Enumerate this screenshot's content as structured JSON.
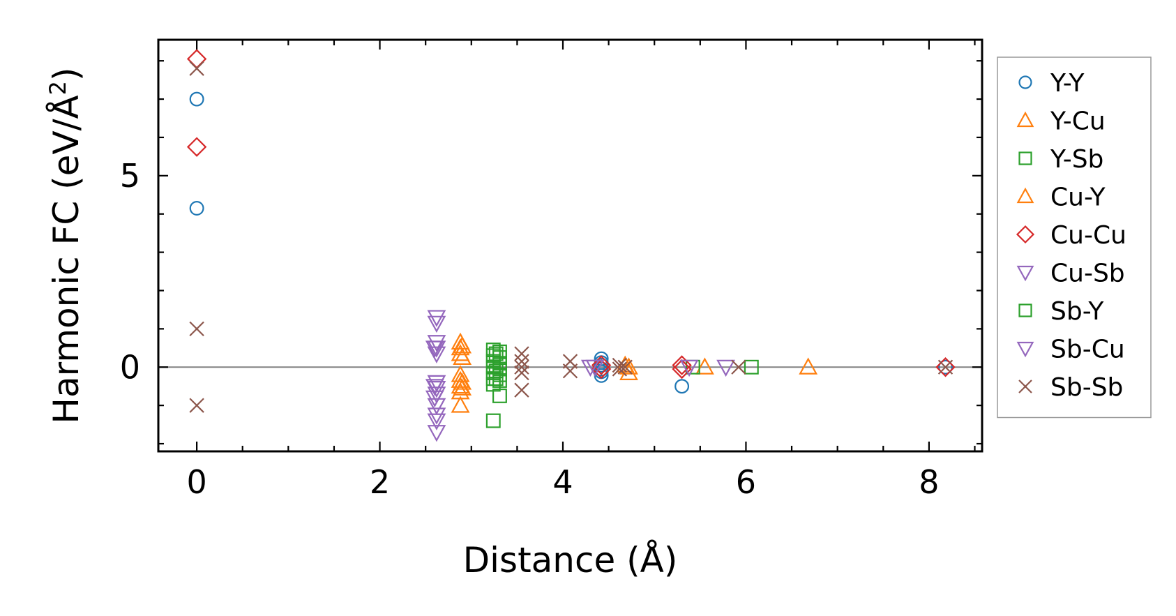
{
  "chart_data": {
    "type": "scatter",
    "title": "",
    "xlabel": "Distance (Å)",
    "ylabel": "Harmonic FC (eV/Å²)",
    "ylabel_parts": {
      "main": "Harmonic FC (eV/Å",
      "sup": "2",
      "close": ")"
    },
    "xlim": [
      -0.42,
      8.58
    ],
    "ylim": [
      -2.2,
      8.55
    ],
    "xticks": [
      0,
      2,
      4,
      6,
      8
    ],
    "xtick_labels": [
      "0",
      "2",
      "4",
      "6",
      "8"
    ],
    "yticks": [
      0,
      5
    ],
    "ytick_labels": [
      "0",
      "5"
    ],
    "reference_line_y": 0,
    "legend_position": "outside-right",
    "series": [
      {
        "name": "Y-Y",
        "marker": "circle",
        "color": "#1f77b4",
        "points": [
          [
            0,
            7.0
          ],
          [
            0,
            4.15
          ],
          [
            4.42,
            0.22
          ],
          [
            4.42,
            0.12
          ],
          [
            4.42,
            0.05
          ],
          [
            4.42,
            -0.05
          ],
          [
            4.42,
            -0.12
          ],
          [
            4.42,
            -0.22
          ],
          [
            5.3,
            -0.5
          ],
          [
            8.18,
            0.0
          ]
        ]
      },
      {
        "name": "Y-Cu",
        "marker": "triangle-up",
        "color": "#ff7f0e",
        "points": [
          [
            2.88,
            0.65
          ],
          [
            2.88,
            0.5
          ],
          [
            2.88,
            0.35
          ],
          [
            2.88,
            -0.2
          ],
          [
            2.88,
            -0.35
          ],
          [
            2.88,
            -0.5
          ],
          [
            2.88,
            -0.65
          ],
          [
            2.88,
            -1.0
          ],
          [
            4.72,
            0.0
          ],
          [
            4.72,
            -0.15
          ],
          [
            5.55,
            0.0
          ],
          [
            6.68,
            0.0
          ]
        ]
      },
      {
        "name": "Y-Sb",
        "marker": "square",
        "color": "#2ca02c",
        "points": [
          [
            3.24,
            0.45
          ],
          [
            3.24,
            0.3
          ],
          [
            3.24,
            0.15
          ],
          [
            3.24,
            0.0
          ],
          [
            3.24,
            -0.15
          ],
          [
            3.24,
            -0.3
          ],
          [
            3.24,
            -0.45
          ],
          [
            3.24,
            -1.4
          ],
          [
            3.31,
            0.4
          ],
          [
            3.31,
            0.25
          ],
          [
            3.31,
            0.1
          ],
          [
            3.31,
            -0.05
          ],
          [
            3.31,
            -0.2
          ],
          [
            3.31,
            -0.35
          ],
          [
            3.31,
            -0.75
          ],
          [
            5.42,
            0.0
          ],
          [
            6.06,
            0.0
          ]
        ]
      },
      {
        "name": "Cu-Y",
        "marker": "triangle-up",
        "color": "#ff7f0e",
        "points": [
          [
            2.9,
            0.55
          ],
          [
            2.9,
            0.25
          ],
          [
            2.9,
            -0.4
          ],
          [
            2.9,
            -0.55
          ],
          [
            4.68,
            0.05
          ]
        ]
      },
      {
        "name": "Cu-Cu",
        "marker": "diamond",
        "color": "#d62728",
        "points": [
          [
            0,
            8.05
          ],
          [
            0,
            5.75
          ],
          [
            4.42,
            0.05
          ],
          [
            4.42,
            -0.05
          ],
          [
            5.3,
            0.05
          ],
          [
            5.3,
            -0.05
          ],
          [
            8.18,
            0.0
          ]
        ]
      },
      {
        "name": "Cu-Sb",
        "marker": "triangle-down",
        "color": "#9467bd",
        "points": [
          [
            2.62,
            1.3
          ],
          [
            2.62,
            1.15
          ],
          [
            2.62,
            0.65
          ],
          [
            2.62,
            0.5
          ],
          [
            2.62,
            0.35
          ],
          [
            2.62,
            -0.4
          ],
          [
            2.62,
            -0.55
          ],
          [
            2.62,
            -0.7
          ],
          [
            2.62,
            -1.0
          ],
          [
            2.62,
            -1.25
          ],
          [
            2.62,
            -1.4
          ],
          [
            2.62,
            -1.7
          ],
          [
            4.3,
            0.0
          ],
          [
            5.38,
            0.0
          ],
          [
            5.78,
            0.0
          ]
        ]
      },
      {
        "name": "Sb-Y",
        "marker": "square",
        "color": "#2ca02c",
        "points": [
          [
            3.27,
            0.35
          ],
          [
            3.27,
            -0.1
          ],
          [
            3.27,
            -0.3
          ]
        ]
      },
      {
        "name": "Sb-Cu",
        "marker": "triangle-down",
        "color": "#9467bd",
        "points": [
          [
            2.6,
            0.5
          ],
          [
            2.6,
            -0.5
          ],
          [
            2.6,
            -0.8
          ],
          [
            4.35,
            0.0
          ]
        ]
      },
      {
        "name": "Sb-Sb",
        "marker": "x",
        "color": "#8c564b",
        "points": [
          [
            0,
            7.8
          ],
          [
            0,
            1.0
          ],
          [
            0,
            -1.0
          ],
          [
            3.55,
            0.35
          ],
          [
            3.55,
            0.15
          ],
          [
            3.55,
            0.0
          ],
          [
            3.55,
            -0.15
          ],
          [
            3.55,
            -0.6
          ],
          [
            4.08,
            0.15
          ],
          [
            4.08,
            -0.1
          ],
          [
            4.62,
            0.05
          ],
          [
            4.62,
            -0.05
          ],
          [
            4.68,
            0.0
          ],
          [
            5.92,
            0.0
          ],
          [
            8.18,
            0.0
          ]
        ]
      }
    ]
  }
}
